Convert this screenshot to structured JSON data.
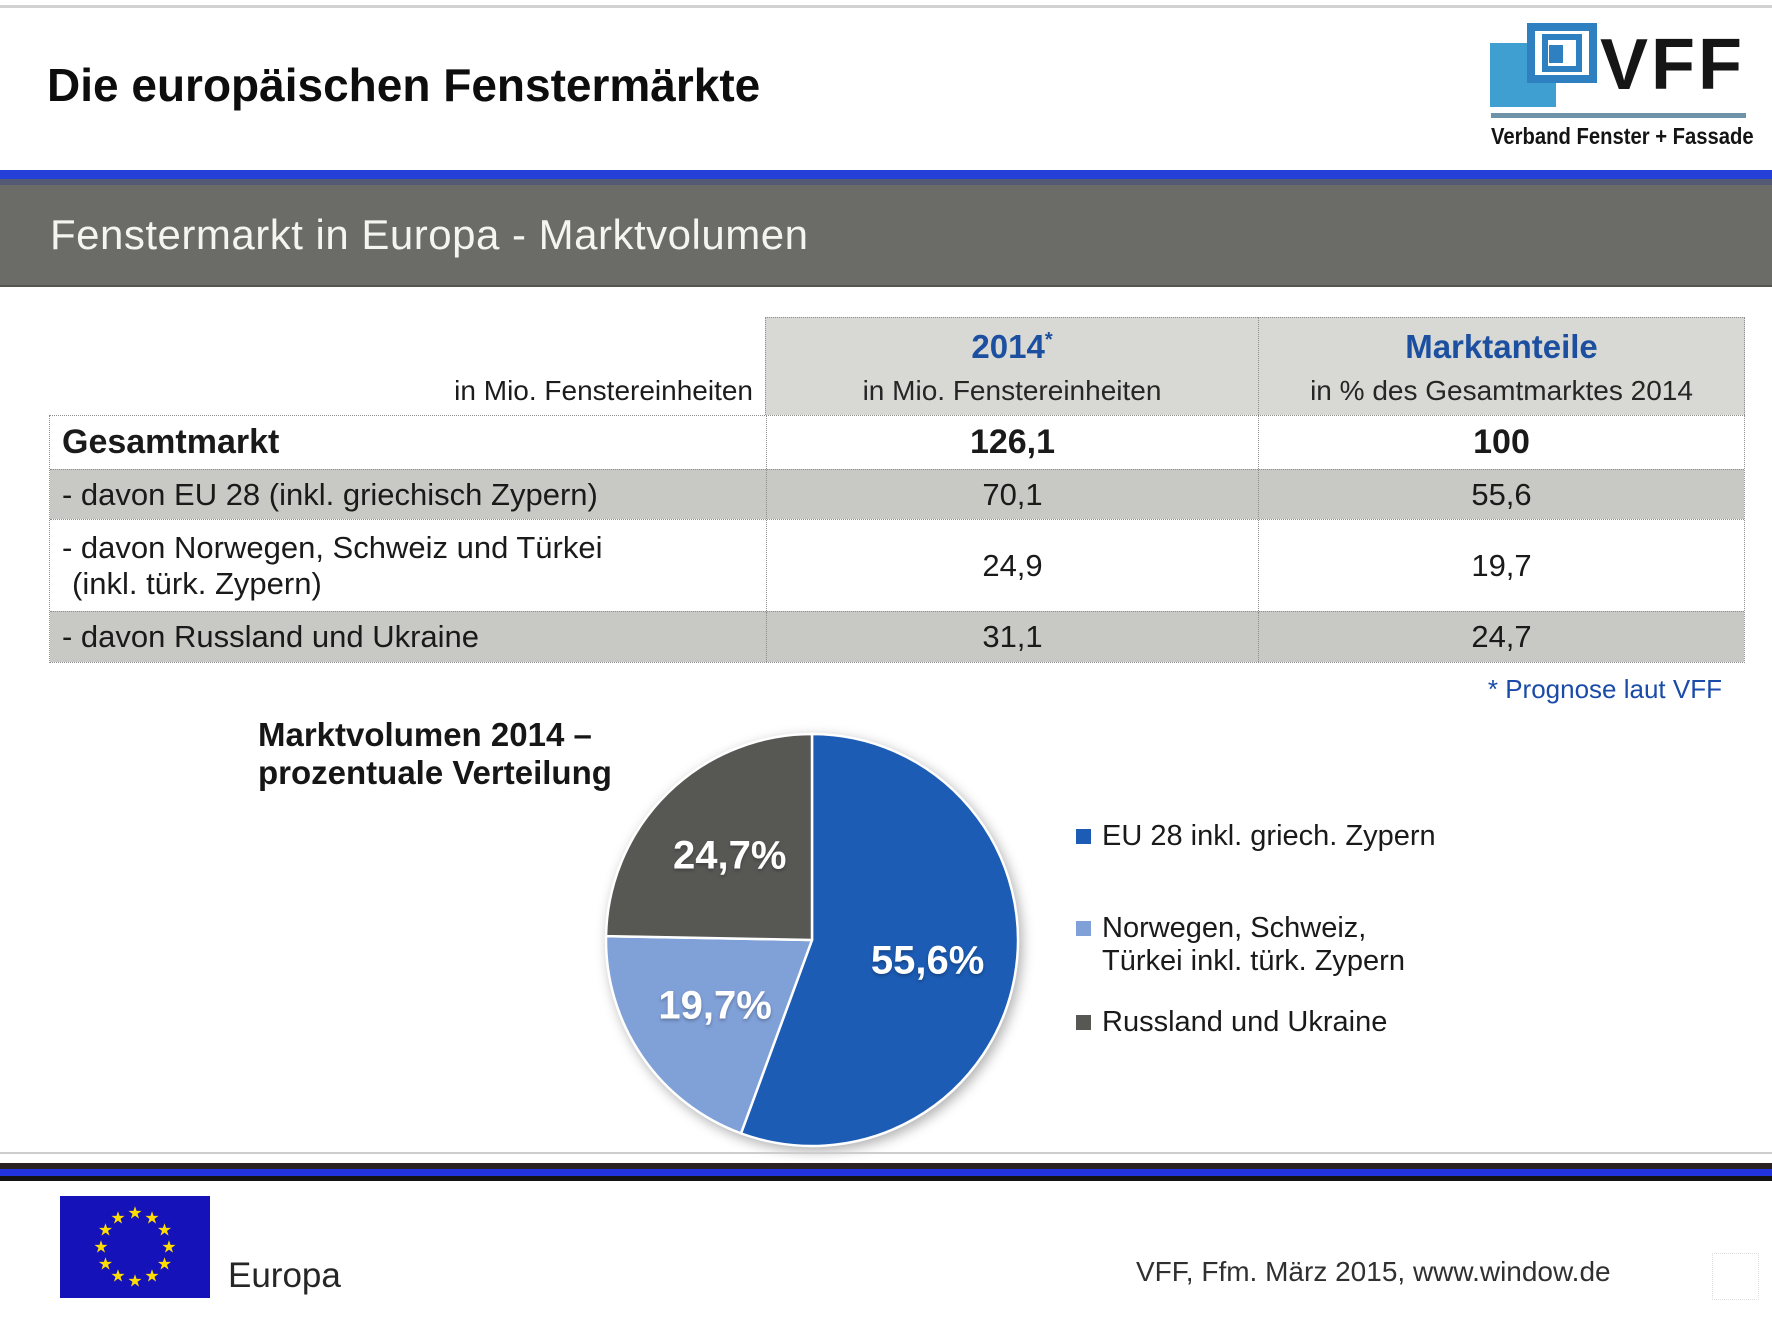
{
  "header": {
    "title": "Die europäischen Fenstermärkte",
    "logo": {
      "acronym": "VFF",
      "subtitle": "Verband Fenster + Fassade"
    }
  },
  "banner": {
    "text": "Fenstermarkt in Europa - Marktvolumen"
  },
  "table": {
    "unit_label": "in Mio. Fenstereinheiten",
    "columns": [
      {
        "title": "2014",
        "superscript": "*",
        "subtitle": "in Mio. Fenstereinheiten"
      },
      {
        "title": "Marktanteile",
        "superscript": "",
        "subtitle": "in % des Gesamtmarktes 2014"
      }
    ],
    "rows": [
      {
        "label": "Gesamtmarkt",
        "label_line2": "",
        "value_2014": "126,1",
        "share": "100"
      },
      {
        "label": "- davon EU 28 (inkl. griechisch Zypern)",
        "label_line2": "",
        "value_2014": "70,1",
        "share": "55,6"
      },
      {
        "label": "- davon Norwegen, Schweiz und Türkei",
        "label_line2": "(inkl. türk. Zypern)",
        "value_2014": "24,9",
        "share": "19,7"
      },
      {
        "label": "- davon Russland und Ukraine",
        "label_line2": "",
        "value_2014": "31,1",
        "share": "24,7"
      }
    ],
    "footnote": "* Prognose laut VFF"
  },
  "chart_data": {
    "type": "pie",
    "title_line1": "Marktvolumen 2014 –",
    "title_line2": "prozentuale Verteilung",
    "title": "Marktvolumen 2014 – prozentuale Verteilung",
    "start_angle_deg": 0,
    "direction": "clockwise",
    "legend_position": "right",
    "slices": [
      {
        "label": "EU 28 inkl. griech. Zypern",
        "value": 55.6,
        "display": "55,6%",
        "color": "#1c5cb4"
      },
      {
        "label": "Norwegen, Schweiz, Türkei inkl. türk. Zypern",
        "value": 19.7,
        "display": "19,7%",
        "color": "#80a0d8"
      },
      {
        "label": "Russland und Ukraine",
        "value": 24.7,
        "display": "24,7%",
        "color": "#575754"
      }
    ],
    "legend": [
      {
        "lines": [
          "EU 28 inkl. griech. Zypern"
        ]
      },
      {
        "lines": [
          "Norwegen, Schweiz,",
          "Türkei inkl. türk. Zypern"
        ]
      },
      {
        "lines": [
          "Russland und Ukraine"
        ]
      }
    ]
  },
  "footer": {
    "region_label": "Europa",
    "source": "VFF, Ffm. März 2015, www.window.de"
  },
  "colors": {
    "accent_rule_blue": "#2440d8",
    "bottom_bar_blue": "#2134e0",
    "banner_gray": "#6b6b67",
    "table_header_bg": "#d8d8d4",
    "table_row_shaded_bg": "#c8c8c5",
    "header_text_blue": "#1c4fa0",
    "footnote_blue": "#1b4ba8",
    "eu_flag_blue": "#1412b8",
    "eu_star_yellow": "#ffdd00"
  }
}
